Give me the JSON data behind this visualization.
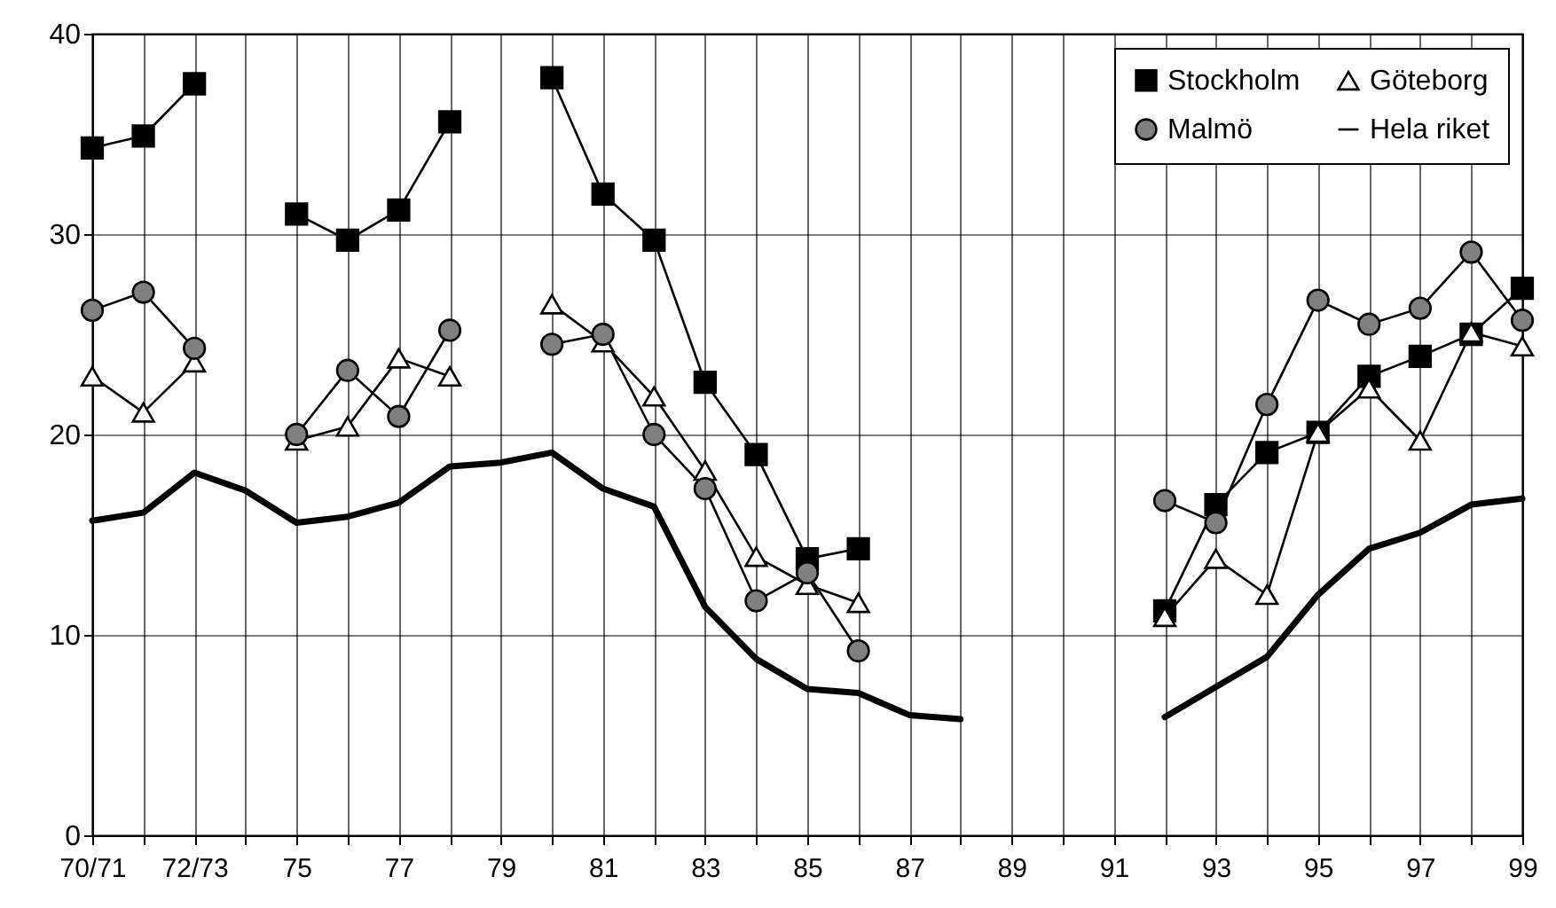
{
  "chart_data": {
    "type": "line",
    "categories": [
      "70/71",
      null,
      "72/73",
      null,
      "75",
      null,
      "77",
      null,
      "79",
      null,
      "81",
      null,
      "83",
      null,
      "85",
      null,
      "87",
      null,
      "89",
      null,
      "91",
      null,
      "93",
      null,
      "95",
      null,
      "97",
      null,
      "99"
    ],
    "series": [
      {
        "name": "Stockholm",
        "color": "#000000",
        "marker": "square",
        "values": [
          34.3,
          34.9,
          37.5,
          null,
          31.0,
          29.7,
          31.2,
          35.6,
          null,
          37.8,
          32.0,
          29.7,
          22.6,
          19.0,
          13.8,
          14.3,
          null,
          null,
          null,
          null,
          null,
          11.2,
          16.5,
          19.1,
          20.1,
          22.9,
          23.9,
          25.0,
          27.3
        ]
      },
      {
        "name": "Göteborg",
        "color": "#ffffff",
        "marker": "triangle",
        "values": [
          22.9,
          21.1,
          23.6,
          null,
          19.7,
          20.4,
          23.8,
          22.9,
          null,
          26.5,
          24.6,
          21.9,
          18.2,
          13.9,
          12.5,
          11.6,
          null,
          null,
          null,
          null,
          null,
          10.9,
          13.8,
          12.0,
          20.1,
          22.3,
          19.7,
          25.1,
          24.4
        ]
      },
      {
        "name": "Malmö",
        "color": "#808080",
        "marker": "circle",
        "values": [
          26.2,
          27.1,
          24.3,
          null,
          20.0,
          23.2,
          20.9,
          25.2,
          null,
          24.5,
          25.0,
          20.0,
          17.3,
          11.7,
          13.1,
          9.2,
          null,
          null,
          null,
          null,
          null,
          16.7,
          15.6,
          21.5,
          26.7,
          25.5,
          26.3,
          29.1,
          25.7
        ]
      },
      {
        "name": "Hela riket",
        "color": "#000000",
        "marker": "none",
        "values": [
          15.7,
          16.1,
          18.1,
          17.2,
          15.6,
          15.9,
          16.6,
          18.4,
          18.6,
          19.1,
          17.3,
          16.4,
          11.4,
          8.8,
          7.3,
          7.1,
          6.0,
          5.8,
          null,
          null,
          null,
          5.9,
          7.4,
          8.9,
          12.0,
          14.3,
          15.1,
          16.5,
          16.8
        ]
      }
    ],
    "ylim": [
      0,
      40
    ],
    "yticks": [
      0,
      10,
      20,
      30,
      40
    ],
    "grid": true,
    "legend": "top right"
  }
}
